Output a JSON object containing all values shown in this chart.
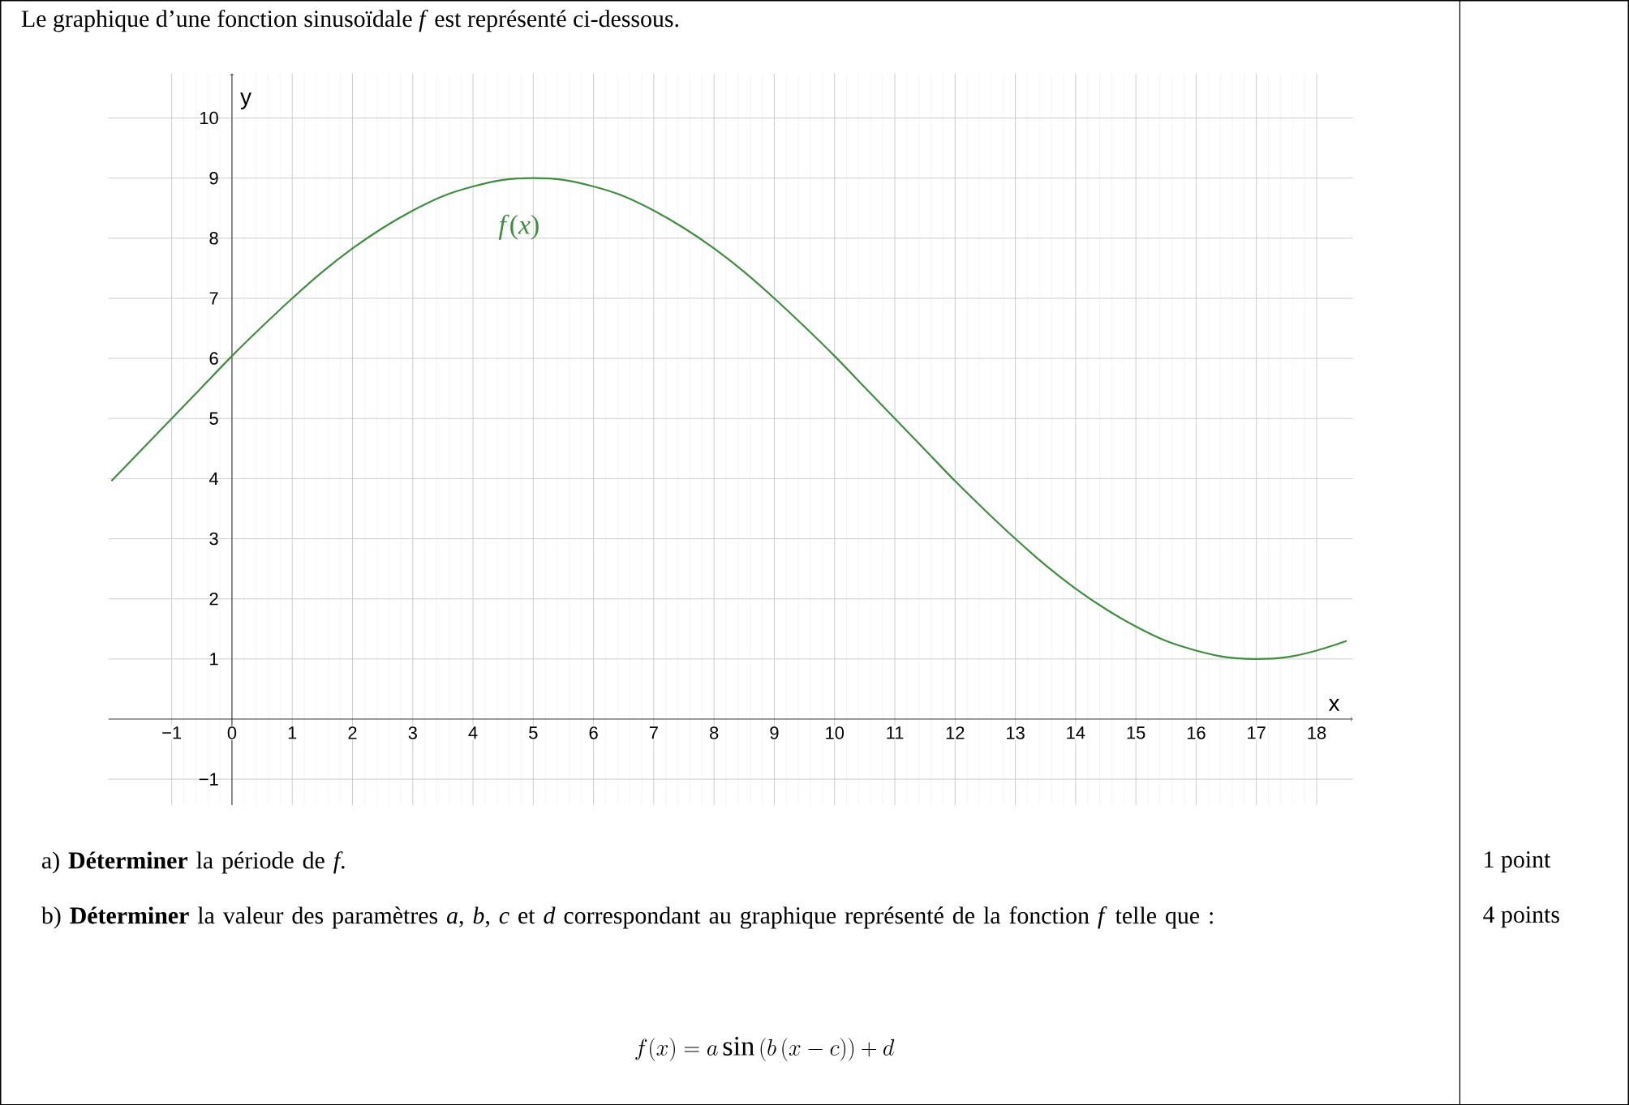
{
  "chart_data": {
    "type": "line",
    "title": "Le graphique d’une fonction sinusoïdale *f* est représenté ci-dessous.",
    "xlabel": "x",
    "ylabel": "y",
    "x": [
      -2,
      -1.5,
      -1,
      -0.5,
      0,
      0.5,
      1,
      1.5,
      2,
      2.5,
      3,
      3.5,
      4,
      4.5,
      5,
      5.5,
      6,
      6.5,
      7,
      7.5,
      8,
      8.5,
      9,
      9.5,
      10,
      10.5,
      11,
      11.5,
      12,
      12.5,
      13,
      13.5,
      14,
      14.5,
      15,
      15.5,
      16,
      16.5,
      17,
      17.5,
      18,
      18.5
    ],
    "series": [
      {
        "color": "#3d8f3d",
        "values": [
          3.96,
          4.48,
          5,
          5.52,
          6.04,
          6.53,
          7,
          7.44,
          7.83,
          8.17,
          8.46,
          8.7,
          8.86,
          8.97,
          9,
          8.97,
          8.86,
          8.7,
          8.46,
          8.17,
          7.83,
          7.44,
          7,
          6.53,
          6.04,
          5.52,
          5,
          4.48,
          3.96,
          3.47,
          3,
          2.56,
          2.17,
          1.83,
          1.54,
          1.3,
          1.14,
          1.03,
          1,
          1.03,
          1.14,
          1.3
        ]
      }
    ],
    "xlim": [
      -2.05,
      18.6
    ],
    "ylim": [
      -1.43,
      10.74
    ],
    "xticks": [
      {
        "value": -1,
        "label": "−1"
      },
      0,
      1,
      2,
      3,
      4,
      5,
      6,
      7,
      8,
      9,
      10,
      11,
      12,
      13,
      14,
      15,
      16,
      17,
      18
    ],
    "yticks": [
      {
        "value": -1,
        "label": "−1"
      },
      1,
      2,
      3,
      4,
      5,
      6,
      7,
      8,
      9,
      10
    ],
    "grid": true,
    "annotations": [
      "*f*(*x*)",
      "a)  **Déterminer** la période de *f*.",
      "1 point",
      "b)  **Déterminer** la valeur des paramètres *a*, *b*, *c* et *d* correspondant au graphique représenté de la fonction *f* telle que :",
      "4 points",
      "f(x) = a\\sin\\left(b\\left(x-c\\right)\\right) + d"
    ]
  }
}
